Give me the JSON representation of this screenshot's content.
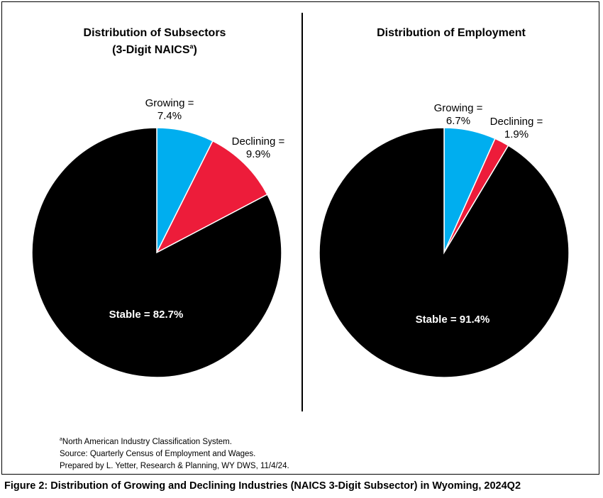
{
  "chart_data": [
    {
      "type": "pie",
      "title": "Distribution of Subsectors",
      "subtitle": "(3-Digit NAICS",
      "subtitle_sup": "a",
      "subtitle_close": ")",
      "slices": [
        {
          "label": "Growing",
          "value": 7.4,
          "color": "#00AEEF",
          "label_line1": "Growing =",
          "label_line2": "7.4%"
        },
        {
          "label": "Declining",
          "value": 9.9,
          "color": "#ED1C3A",
          "label_line1": "Declining =",
          "label_line2": "9.9%"
        },
        {
          "label": "Stable",
          "value": 82.7,
          "color": "#000000",
          "label_text": "Stable = 82.7%"
        }
      ]
    },
    {
      "type": "pie",
      "title": "Distribution of Employment",
      "slices": [
        {
          "label": "Growing",
          "value": 6.7,
          "color": "#00AEEF",
          "label_line1": "Growing =",
          "label_line2": "6.7%"
        },
        {
          "label": "Declining",
          "value": 1.9,
          "color": "#ED1C3A",
          "label_line1": "Declining =",
          "label_line2": "1.9%"
        },
        {
          "label": "Stable",
          "value": 91.4,
          "color": "#000000",
          "label_text": "Stable = 91.4%"
        }
      ]
    }
  ],
  "notes": {
    "footnote_sup": "a",
    "footnote": "North American Industry Classification System.",
    "source": "Source: Quarterly Census of Employment and Wages.",
    "prepared": "Prepared by L. Yetter, Research & Planning, WY DWS, 11/4/24."
  },
  "caption": "Figure 2: Distribution of Growing and Declining Industries (NAICS 3-Digit Subsector) in Wyoming, 2024Q2"
}
